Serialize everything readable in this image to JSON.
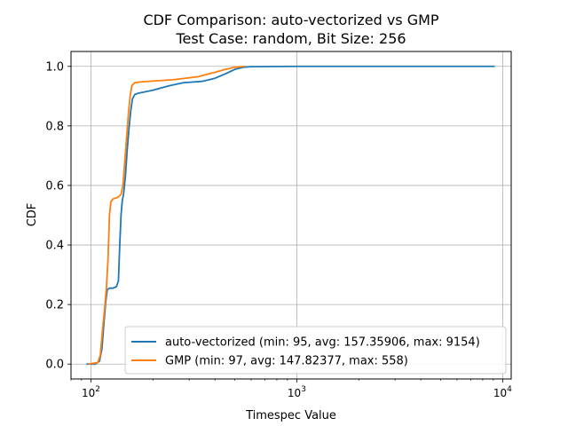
{
  "chart_data": {
    "type": "line",
    "title": "CDF Comparison: auto-vectorized vs GMP",
    "subtitle": "Test Case: random, Bit Size: 256",
    "xlabel": "Timespec Value",
    "ylabel": "CDF",
    "xscale": "log",
    "xlim": [
      80,
      11000
    ],
    "ylim": [
      -0.05,
      1.05
    ],
    "x_ticks": [
      {
        "value": 100,
        "base": "10",
        "exp": "2"
      },
      {
        "value": 1000,
        "base": "10",
        "exp": "3"
      },
      {
        "value": 10000,
        "base": "10",
        "exp": "4"
      }
    ],
    "y_ticks": [
      {
        "value": 0.0,
        "label": "0.0"
      },
      {
        "value": 0.2,
        "label": "0.2"
      },
      {
        "value": 0.4,
        "label": "0.4"
      },
      {
        "value": 0.6,
        "label": "0.6"
      },
      {
        "value": 0.8,
        "label": "0.8"
      },
      {
        "value": 1.0,
        "label": "1.0"
      }
    ],
    "grid": true,
    "legend_position": "lower-right",
    "series": [
      {
        "name": "auto-vectorized (min: 95, avg: 157.35906, max: 9154)",
        "color": "#1f77b4",
        "points": [
          [
            95,
            0.0
          ],
          [
            105,
            0.0
          ],
          [
            110,
            0.01
          ],
          [
            113,
            0.05
          ],
          [
            116,
            0.15
          ],
          [
            118,
            0.21
          ],
          [
            120,
            0.25
          ],
          [
            123,
            0.255
          ],
          [
            128,
            0.255
          ],
          [
            133,
            0.26
          ],
          [
            136,
            0.28
          ],
          [
            138,
            0.4
          ],
          [
            140,
            0.5
          ],
          [
            142,
            0.55
          ],
          [
            144,
            0.57
          ],
          [
            147,
            0.63
          ],
          [
            150,
            0.72
          ],
          [
            153,
            0.79
          ],
          [
            156,
            0.85
          ],
          [
            159,
            0.89
          ],
          [
            163,
            0.905
          ],
          [
            170,
            0.91
          ],
          [
            200,
            0.92
          ],
          [
            240,
            0.935
          ],
          [
            280,
            0.945
          ],
          [
            350,
            0.95
          ],
          [
            400,
            0.96
          ],
          [
            450,
            0.975
          ],
          [
            500,
            0.99
          ],
          [
            550,
            0.997
          ],
          [
            600,
            0.999
          ],
          [
            1000,
            1.0
          ],
          [
            9154,
            1.0
          ]
        ]
      },
      {
        "name": "GMP (min: 97, avg: 147.82377, max: 558)",
        "color": "#ff7f0e",
        "points": [
          [
            97,
            0.0
          ],
          [
            108,
            0.005
          ],
          [
            111,
            0.03
          ],
          [
            114,
            0.12
          ],
          [
            117,
            0.2
          ],
          [
            119,
            0.26
          ],
          [
            121,
            0.35
          ],
          [
            123,
            0.5
          ],
          [
            125,
            0.545
          ],
          [
            128,
            0.555
          ],
          [
            135,
            0.56
          ],
          [
            140,
            0.57
          ],
          [
            143,
            0.6
          ],
          [
            146,
            0.68
          ],
          [
            149,
            0.76
          ],
          [
            152,
            0.84
          ],
          [
            155,
            0.9
          ],
          [
            158,
            0.935
          ],
          [
            163,
            0.945
          ],
          [
            175,
            0.948
          ],
          [
            250,
            0.955
          ],
          [
            330,
            0.965
          ],
          [
            400,
            0.98
          ],
          [
            450,
            0.99
          ],
          [
            500,
            0.997
          ],
          [
            558,
            1.0
          ]
        ]
      }
    ]
  }
}
